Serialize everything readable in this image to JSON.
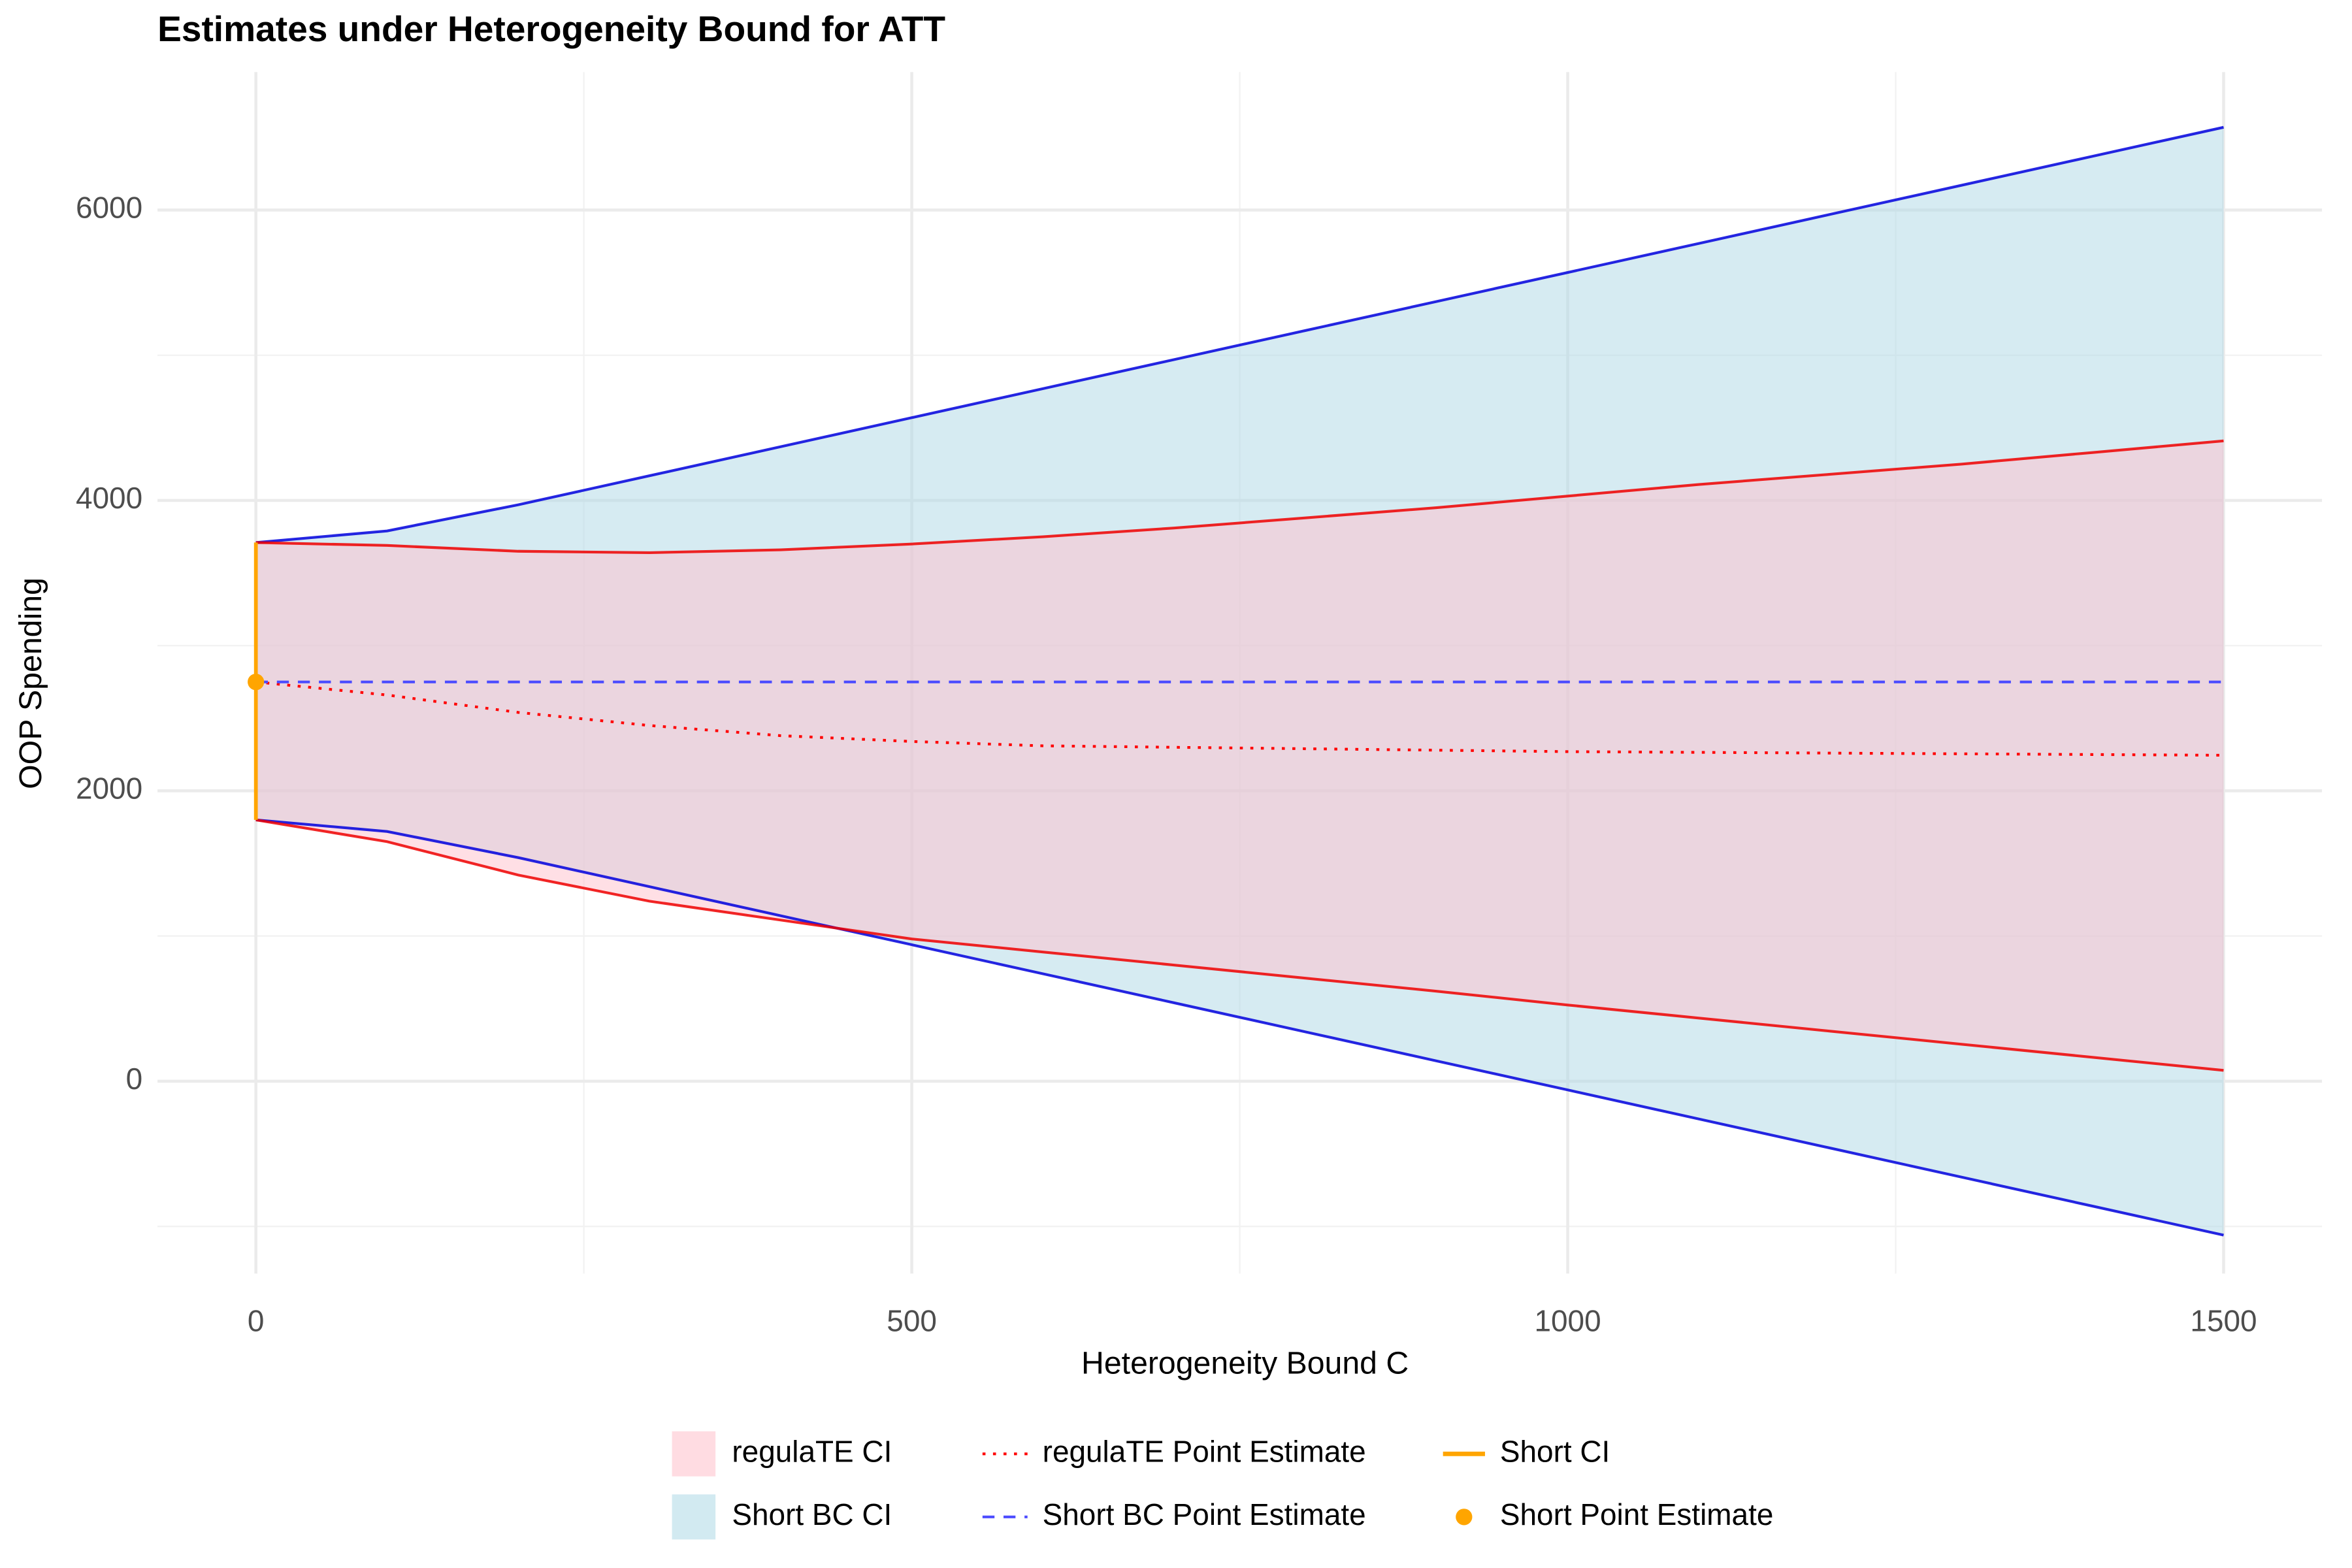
{
  "chart_data": {
    "type": "ribbon-line",
    "title": "Estimates under Heterogeneity Bound for ATT",
    "x_label": "Heterogeneity Bound C",
    "y_label": "OOP Spending",
    "x": [
      0,
      100,
      200,
      300,
      400,
      500,
      600,
      700,
      800,
      900,
      1000,
      1100,
      1200,
      1300,
      1400,
      1500
    ],
    "xlim": [
      -75,
      1575
    ],
    "ylim": [
      -1325,
      6950
    ],
    "xticks": [
      0,
      500,
      1000,
      1500
    ],
    "yticks": [
      0,
      2000,
      4000,
      6000
    ],
    "x_minor_ticks": [
      250,
      750,
      1250
    ],
    "y_minor_ticks": [
      -1000,
      1000,
      3000,
      5000
    ],
    "grid": true,
    "legend": "bottom",
    "series": [
      {
        "name": "Short BC CI",
        "kind": "ribbon",
        "color": "#add8e6",
        "edge_color": "#0000dd",
        "lower": [
          1800,
          1720,
          1540,
          1340,
          1140,
          940,
          740,
          540,
          340,
          140,
          -60,
          -260,
          -460,
          -660,
          -860,
          -1060
        ],
        "upper": [
          3710,
          3790,
          3970,
          4170,
          4370,
          4570,
          4770,
          4970,
          5170,
          5370,
          5570,
          5770,
          5970,
          6170,
          6370,
          6570
        ]
      },
      {
        "name": "regulaTE CI",
        "kind": "ribbon",
        "color": "#ffc0cb",
        "edge_color": "#ee0000",
        "lower": [
          1800,
          1650,
          1420,
          1240,
          1110,
          980,
          890,
          800,
          710,
          620,
          525,
          435,
          345,
          255,
          165,
          75
        ],
        "upper": [
          3710,
          3690,
          3650,
          3640,
          3660,
          3700,
          3750,
          3810,
          3880,
          3950,
          4030,
          4110,
          4180,
          4250,
          4330,
          4410
        ]
      },
      {
        "name": "regulaTE Point Estimate",
        "kind": "line",
        "dash": "dotted",
        "color": "#ff0000",
        "values": [
          2750,
          2660,
          2540,
          2450,
          2380,
          2340,
          2310,
          2300,
          2290,
          2280,
          2270,
          2265,
          2260,
          2255,
          2250,
          2245
        ]
      },
      {
        "name": "Short BC Point Estimate",
        "kind": "line",
        "dash": "dashed",
        "color": "#4d4dff",
        "values": [
          2750,
          2750,
          2750,
          2750,
          2750,
          2750,
          2750,
          2750,
          2750,
          2750,
          2750,
          2750,
          2750,
          2750,
          2750,
          2750
        ]
      },
      {
        "name": "Short CI",
        "kind": "errorbar",
        "color": "#ffa500",
        "x": [
          0
        ],
        "lower": [
          1800
        ],
        "upper": [
          3710
        ]
      },
      {
        "name": "Short Point Estimate",
        "kind": "point",
        "color": "#ffa500",
        "x": [
          0
        ],
        "values": [
          2750
        ]
      }
    ]
  }
}
